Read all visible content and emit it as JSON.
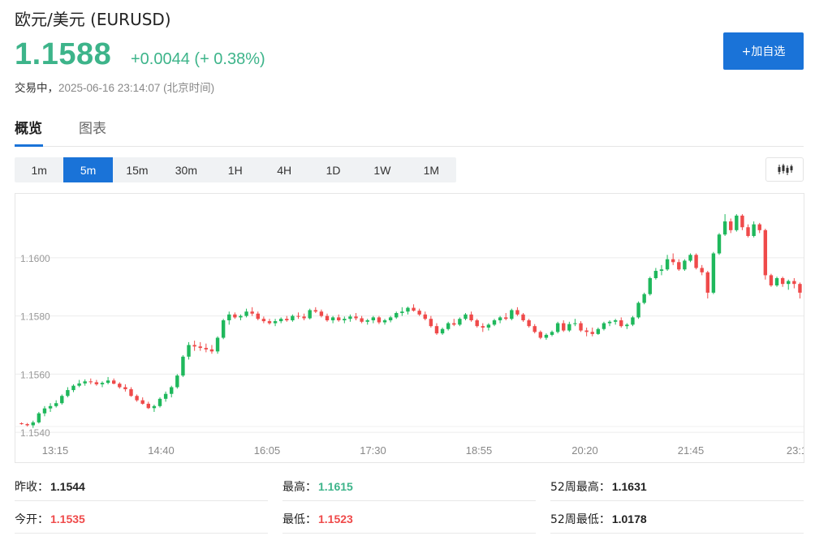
{
  "header": {
    "title": "欧元/美元  (EURUSD)",
    "price": "1.1588",
    "change": "+0.0044 (+ 0.38%)",
    "status_label": "交易中，",
    "status_time": "2025-06-16 23:14:07  (北京时间)",
    "add_button": "+加自选"
  },
  "tabs": [
    {
      "label": "概览",
      "active": true
    },
    {
      "label": "图表",
      "active": false
    }
  ],
  "intervals": [
    {
      "label": "1m",
      "active": false
    },
    {
      "label": "5m",
      "active": true
    },
    {
      "label": "15m",
      "active": false
    },
    {
      "label": "30m",
      "active": false
    },
    {
      "label": "1H",
      "active": false
    },
    {
      "label": "4H",
      "active": false
    },
    {
      "label": "1D",
      "active": false
    },
    {
      "label": "1W",
      "active": false
    },
    {
      "label": "1M",
      "active": false
    }
  ],
  "chart_type_icon": "candlestick-icon",
  "colors": {
    "up": "#1fb85c",
    "down": "#ef4a4a",
    "accent": "#1a73d8",
    "price": "#3db48a"
  },
  "chart_data": {
    "type": "candlestick",
    "y_ticks": [
      "1.1540",
      "1.1560",
      "1.1580",
      "1.1600"
    ],
    "x_ticks": [
      "13:15",
      "14:40",
      "16:05",
      "17:30",
      "18:55",
      "20:20",
      "21:45",
      "23:1"
    ],
    "ylim": [
      1.1535,
      1.1622
    ],
    "grid": true,
    "candles": [
      [
        1.15431,
        1.15434,
        1.15426,
        1.15428
      ],
      [
        1.15428,
        1.15432,
        1.1542,
        1.15424
      ],
      [
        1.15424,
        1.1544,
        1.15415,
        1.15434
      ],
      [
        1.15434,
        1.1547,
        1.1543,
        1.15465
      ],
      [
        1.15465,
        1.1549,
        1.15455,
        1.15482
      ],
      [
        1.15482,
        1.155,
        1.1547,
        1.1549
      ],
      [
        1.1549,
        1.1551,
        1.15485,
        1.155
      ],
      [
        1.155,
        1.1553,
        1.15495,
        1.15525
      ],
      [
        1.15525,
        1.15555,
        1.1552,
        1.15545
      ],
      [
        1.15545,
        1.15565,
        1.15538,
        1.1556
      ],
      [
        1.1556,
        1.1558,
        1.15555,
        1.15568
      ],
      [
        1.15568,
        1.15582,
        1.1556,
        1.15575
      ],
      [
        1.15575,
        1.15585,
        1.15565,
        1.15572
      ],
      [
        1.15572,
        1.1558,
        1.1556,
        1.15565
      ],
      [
        1.15565,
        1.15575,
        1.15555,
        1.1557
      ],
      [
        1.1557,
        1.1559,
        1.15565,
        1.15578
      ],
      [
        1.15578,
        1.15585,
        1.15565,
        1.15567
      ],
      [
        1.15567,
        1.15572,
        1.1555,
        1.15555
      ],
      [
        1.15555,
        1.15565,
        1.1554,
        1.15548
      ],
      [
        1.15548,
        1.15555,
        1.15522,
        1.15525
      ],
      [
        1.15525,
        1.1553,
        1.15505,
        1.1551
      ],
      [
        1.1551,
        1.1552,
        1.15495,
        1.15498
      ],
      [
        1.15498,
        1.15505,
        1.1548,
        1.15483
      ],
      [
        1.15483,
        1.15495,
        1.1547,
        1.1549
      ],
      [
        1.1549,
        1.1552,
        1.15485,
        1.15515
      ],
      [
        1.15515,
        1.1554,
        1.15505,
        1.15532
      ],
      [
        1.15532,
        1.1556,
        1.1552,
        1.15555
      ],
      [
        1.15555,
        1.156,
        1.1555,
        1.15595
      ],
      [
        1.15595,
        1.15665,
        1.1559,
        1.1566
      ],
      [
        1.1566,
        1.1571,
        1.1565,
        1.157
      ],
      [
        1.157,
        1.15715,
        1.1568,
        1.15695
      ],
      [
        1.15695,
        1.1571,
        1.1568,
        1.1569
      ],
      [
        1.1569,
        1.15705,
        1.15675,
        1.15685
      ],
      [
        1.15685,
        1.157,
        1.1567,
        1.15678
      ],
      [
        1.15678,
        1.1573,
        1.1567,
        1.15725
      ],
      [
        1.15725,
        1.1579,
        1.1572,
        1.15785
      ],
      [
        1.15785,
        1.15815,
        1.1577,
        1.15805
      ],
      [
        1.15805,
        1.15812,
        1.1579,
        1.15795
      ],
      [
        1.15795,
        1.15805,
        1.15785,
        1.158
      ],
      [
        1.158,
        1.15825,
        1.15795,
        1.15815
      ],
      [
        1.15815,
        1.1583,
        1.158,
        1.15808
      ],
      [
        1.15808,
        1.15815,
        1.15785,
        1.1579
      ],
      [
        1.1579,
        1.15798,
        1.15775,
        1.15782
      ],
      [
        1.15782,
        1.1579,
        1.1577,
        1.15775
      ],
      [
        1.15775,
        1.1579,
        1.15765,
        1.15782
      ],
      [
        1.15782,
        1.15795,
        1.15775,
        1.1579
      ],
      [
        1.1579,
        1.158,
        1.1578,
        1.15785
      ],
      [
        1.15785,
        1.15805,
        1.1578,
        1.158
      ],
      [
        1.158,
        1.15812,
        1.1579,
        1.15798
      ],
      [
        1.15798,
        1.15808,
        1.15785,
        1.15792
      ],
      [
        1.15792,
        1.15825,
        1.15788,
        1.1582
      ],
      [
        1.1582,
        1.1583,
        1.1581,
        1.15815
      ],
      [
        1.15815,
        1.15822,
        1.15795,
        1.158
      ],
      [
        1.158,
        1.15808,
        1.1578,
        1.15785
      ],
      [
        1.15785,
        1.158,
        1.15775,
        1.15795
      ],
      [
        1.15795,
        1.15805,
        1.1578,
        1.15785
      ],
      [
        1.15785,
        1.15798,
        1.15775,
        1.1579
      ],
      [
        1.1579,
        1.15805,
        1.1578,
        1.15798
      ],
      [
        1.15798,
        1.1581,
        1.15785,
        1.15792
      ],
      [
        1.15792,
        1.158,
        1.15775,
        1.1578
      ],
      [
        1.1578,
        1.1579,
        1.1577,
        1.15785
      ],
      [
        1.15785,
        1.158,
        1.15775,
        1.15795
      ],
      [
        1.15795,
        1.158,
        1.15772,
        1.15778
      ],
      [
        1.15778,
        1.1579,
        1.1577,
        1.15785
      ],
      [
        1.15785,
        1.158,
        1.15778,
        1.15795
      ],
      [
        1.15795,
        1.15815,
        1.1579,
        1.1581
      ],
      [
        1.1581,
        1.1583,
        1.158,
        1.15815
      ],
      [
        1.15815,
        1.15832,
        1.15805,
        1.15828
      ],
      [
        1.15828,
        1.1584,
        1.15815,
        1.15818
      ],
      [
        1.15818,
        1.15825,
        1.158,
        1.15805
      ],
      [
        1.15805,
        1.15815,
        1.15785,
        1.1579
      ],
      [
        1.1579,
        1.158,
        1.1576,
        1.15765
      ],
      [
        1.15765,
        1.15775,
        1.15735,
        1.1574
      ],
      [
        1.1574,
        1.1576,
        1.15735,
        1.15755
      ],
      [
        1.15755,
        1.1578,
        1.1575,
        1.15775
      ],
      [
        1.15775,
        1.1579,
        1.15765,
        1.1577
      ],
      [
        1.1577,
        1.15795,
        1.15765,
        1.1579
      ],
      [
        1.1579,
        1.1581,
        1.15785,
        1.15805
      ],
      [
        1.15805,
        1.15815,
        1.1578,
        1.15785
      ],
      [
        1.15785,
        1.1579,
        1.1576,
        1.15765
      ],
      [
        1.15765,
        1.15775,
        1.15745,
        1.1576
      ],
      [
        1.1576,
        1.15775,
        1.1575,
        1.1577
      ],
      [
        1.1577,
        1.1579,
        1.15765,
        1.15785
      ],
      [
        1.15785,
        1.158,
        1.15775,
        1.15795
      ],
      [
        1.15795,
        1.1581,
        1.15785,
        1.1579
      ],
      [
        1.1579,
        1.15825,
        1.15785,
        1.1582
      ],
      [
        1.1582,
        1.1583,
        1.158,
        1.15805
      ],
      [
        1.15805,
        1.1581,
        1.1578,
        1.15785
      ],
      [
        1.15785,
        1.1579,
        1.1576,
        1.15765
      ],
      [
        1.15765,
        1.15772,
        1.1574,
        1.15745
      ],
      [
        1.15745,
        1.1575,
        1.1572,
        1.15725
      ],
      [
        1.15725,
        1.1574,
        1.15718,
        1.15735
      ],
      [
        1.15735,
        1.1575,
        1.1573,
        1.15745
      ],
      [
        1.15745,
        1.1578,
        1.1574,
        1.15775
      ],
      [
        1.15775,
        1.15785,
        1.15745,
        1.1575
      ],
      [
        1.1575,
        1.1578,
        1.15745,
        1.15772
      ],
      [
        1.15772,
        1.1579,
        1.15765,
        1.15775
      ],
      [
        1.15775,
        1.15782,
        1.15745,
        1.1575
      ],
      [
        1.1575,
        1.1576,
        1.1573,
        1.15745
      ],
      [
        1.15745,
        1.1576,
        1.1573,
        1.15738
      ],
      [
        1.15738,
        1.1576,
        1.15735,
        1.15755
      ],
      [
        1.15755,
        1.1578,
        1.1575,
        1.15775
      ],
      [
        1.15775,
        1.15785,
        1.15765,
        1.1578
      ],
      [
        1.1578,
        1.1579,
        1.1577,
        1.15785
      ],
      [
        1.15785,
        1.15795,
        1.1576,
        1.15765
      ],
      [
        1.15765,
        1.15775,
        1.15755,
        1.1577
      ],
      [
        1.1577,
        1.158,
        1.15765,
        1.15795
      ],
      [
        1.15795,
        1.1585,
        1.1579,
        1.15845
      ],
      [
        1.15845,
        1.1588,
        1.1584,
        1.15875
      ],
      [
        1.15875,
        1.15935,
        1.1587,
        1.1593
      ],
      [
        1.1593,
        1.15965,
        1.15925,
        1.15955
      ],
      [
        1.15955,
        1.15975,
        1.1594,
        1.1596
      ],
      [
        1.1596,
        1.1601,
        1.15955,
        1.15995
      ],
      [
        1.15995,
        1.16015,
        1.15975,
        1.15985
      ],
      [
        1.15985,
        1.15995,
        1.15955,
        1.1596
      ],
      [
        1.1596,
        1.15995,
        1.15955,
        1.1599
      ],
      [
        1.1599,
        1.16015,
        1.15985,
        1.1601
      ],
      [
        1.1601,
        1.16015,
        1.1596,
        1.15965
      ],
      [
        1.15965,
        1.15975,
        1.1594,
        1.1595
      ],
      [
        1.1595,
        1.15955,
        1.1586,
        1.1588
      ],
      [
        1.1588,
        1.1602,
        1.15875,
        1.16015
      ],
      [
        1.16015,
        1.16085,
        1.1601,
        1.1608
      ],
      [
        1.1608,
        1.1615,
        1.16075,
        1.16125
      ],
      [
        1.16125,
        1.16135,
        1.16085,
        1.16095
      ],
      [
        1.16095,
        1.1615,
        1.1609,
        1.16145
      ],
      [
        1.16145,
        1.1615,
        1.16095,
        1.16105
      ],
      [
        1.16105,
        1.16115,
        1.1607,
        1.16075
      ],
      [
        1.16075,
        1.16125,
        1.1607,
        1.16115
      ],
      [
        1.16115,
        1.1612,
        1.16085,
        1.16095
      ],
      [
        1.16095,
        1.161,
        1.15925,
        1.1594
      ],
      [
        1.1594,
        1.15945,
        1.159,
        1.15905
      ],
      [
        1.15905,
        1.15935,
        1.159,
        1.1593
      ],
      [
        1.1593,
        1.15935,
        1.159,
        1.1591
      ],
      [
        1.1591,
        1.15925,
        1.1589,
        1.1592
      ],
      [
        1.1592,
        1.1593,
        1.15895,
        1.1591
      ],
      [
        1.1591,
        1.15915,
        1.1586,
        1.1588
      ]
    ]
  },
  "stats": [
    {
      "label": "昨收：",
      "value": "1.1544",
      "tone": "neutral"
    },
    {
      "label": "最高：",
      "value": "1.1615",
      "tone": "up"
    },
    {
      "label": "52周最高：",
      "value": "1.1631",
      "tone": "neutral"
    },
    {
      "label": "今开：",
      "value": "1.1535",
      "tone": "down"
    },
    {
      "label": "最低：",
      "value": "1.1523",
      "tone": "down"
    },
    {
      "label": "52周最低：",
      "value": "1.0178",
      "tone": "neutral"
    }
  ]
}
